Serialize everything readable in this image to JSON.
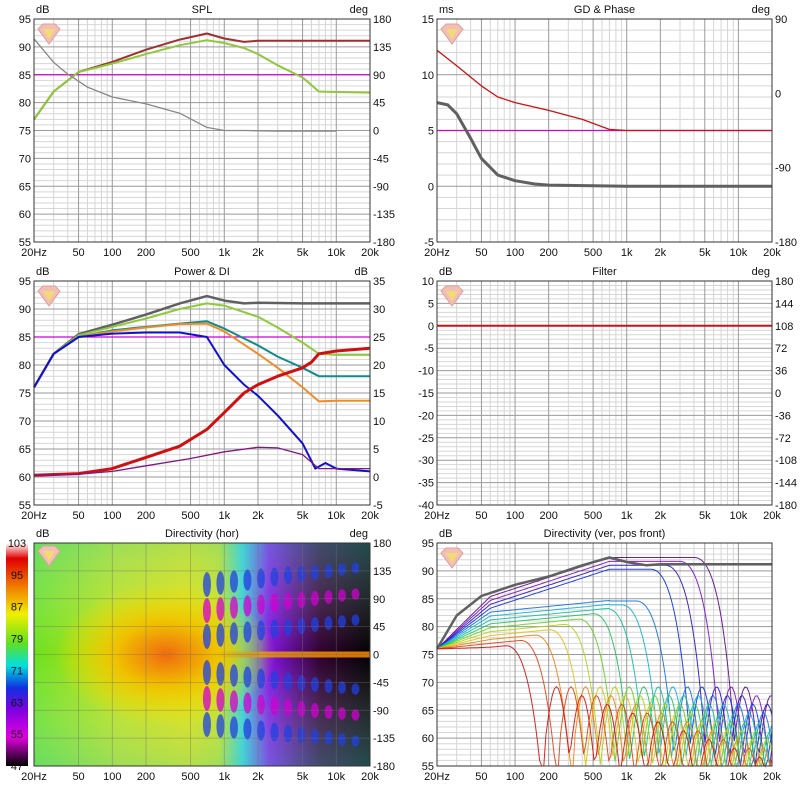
{
  "colors": {
    "gold_line": "#d000d0",
    "spl_red": "#a03030",
    "spl_green": "#90c83c",
    "grey": "#888888",
    "dark_grey": "#606060",
    "red": "#d01010",
    "orange": "#f08c28",
    "teal": "#108c8c",
    "blue": "#1010d0",
    "purple": "#801880"
  },
  "chart_data": [
    {
      "id": "spl",
      "type": "line",
      "title": "SPL",
      "ylabel_left": "dB",
      "ylabel_right": "deg",
      "xlim": [
        20,
        20000
      ],
      "xscale": "log",
      "ylim": [
        55,
        95
      ],
      "y2lim": [
        -180,
        180
      ],
      "x_ticks": [
        "20Hz",
        "50",
        "100",
        "200",
        "500",
        "1k",
        "2k",
        "5k",
        "10k",
        "20k"
      ],
      "y_ticks": [
        "95",
        "90",
        "85",
        "80",
        "75",
        "70",
        "65",
        "60",
        "55"
      ],
      "y2_ticks": [
        "180",
        "135",
        "90",
        "45",
        "0",
        "-45",
        "-90",
        "-135",
        "-180"
      ],
      "hline": 85,
      "series": [
        {
          "axis": "left",
          "color": "#a03030",
          "x": [
            20,
            30,
            50,
            100,
            200,
            400,
            700,
            1000,
            1500,
            2000,
            5000,
            10000,
            20000
          ],
          "y": [
            77,
            82,
            85.5,
            87.3,
            89.5,
            91.3,
            92.4,
            91.5,
            90.9,
            91.1,
            91.1,
            91.1,
            91.1
          ]
        },
        {
          "axis": "left",
          "color": "#90c83c",
          "x": [
            20,
            30,
            50,
            100,
            200,
            400,
            700,
            1000,
            1500,
            2000,
            3000,
            5000,
            7000,
            10000,
            20000
          ],
          "y": [
            77,
            82,
            85.5,
            87,
            88.7,
            90.3,
            91.2,
            90.7,
            89.8,
            88.7,
            86.7,
            84.5,
            82,
            81.9,
            81.8
          ]
        },
        {
          "axis": "right",
          "color": "#888888",
          "x": [
            20,
            30,
            40,
            60,
            100,
            200,
            400,
            700,
            1000,
            1500,
            3000,
            10000
          ],
          "y": [
            148,
            110,
            91,
            70,
            54,
            43,
            28,
            5,
            0,
            0,
            -1,
            -1
          ]
        }
      ]
    },
    {
      "id": "gd_phase",
      "type": "line",
      "title": "GD & Phase",
      "ylabel_left": "ms",
      "ylabel_right": "deg",
      "xlim": [
        20,
        20000
      ],
      "xscale": "log",
      "ylim": [
        -5,
        15
      ],
      "y2lim": [
        -180,
        180
      ],
      "x_ticks": [
        "20Hz",
        "50",
        "100",
        "200",
        "500",
        "1k",
        "2k",
        "5k",
        "10k",
        "20k"
      ],
      "y_ticks": [
        "15",
        "10",
        "5",
        "0",
        "-5"
      ],
      "y2_ticks": [
        "90",
        "0",
        "-90",
        "-180"
      ],
      "hline": 5,
      "series": [
        {
          "axis": "left",
          "color": "#d01010",
          "x": [
            20,
            30,
            50,
            70,
            100,
            200,
            400,
            700,
            1000,
            2000,
            5000,
            20000
          ],
          "y": [
            12.2,
            10.8,
            9,
            8,
            7.5,
            6.8,
            6,
            5.1,
            5,
            5,
            5,
            5
          ]
        },
        {
          "axis": "left",
          "color": "#606060",
          "x": [
            20,
            25,
            30,
            40,
            50,
            70,
            100,
            150,
            200,
            500,
            1000,
            2000,
            20000
          ],
          "y": [
            7.5,
            7.3,
            6.5,
            4.3,
            2.5,
            1,
            0.5,
            0.2,
            0.1,
            0.05,
            0,
            0,
            0
          ]
        }
      ]
    },
    {
      "id": "power_di",
      "type": "line",
      "title": "Power & DI",
      "ylabel_left": "dB",
      "ylabel_right": "dB",
      "xlim": [
        20,
        20000
      ],
      "xscale": "log",
      "ylim": [
        55,
        95
      ],
      "y2lim": [
        -5,
        35
      ],
      "x_ticks": [
        "20Hz",
        "50",
        "100",
        "200",
        "500",
        "1k",
        "2k",
        "5k",
        "10k",
        "20k"
      ],
      "y_ticks": [
        "95",
        "90",
        "85",
        "80",
        "75",
        "70",
        "65",
        "60",
        "55"
      ],
      "y2_ticks": [
        "35",
        "30",
        "25",
        "20",
        "15",
        "10",
        "5",
        "0",
        "-5"
      ],
      "hline": 85,
      "series": [
        {
          "axis": "left",
          "color": "#606060",
          "x": [
            20,
            30,
            50,
            100,
            200,
            400,
            700,
            1000,
            1500,
            2000,
            5000,
            20000
          ],
          "y": [
            76,
            82,
            85.5,
            87.2,
            89,
            91,
            92.3,
            91.5,
            91,
            91.1,
            91,
            91
          ]
        },
        {
          "axis": "left",
          "color": "#90c83c",
          "x": [
            20,
            30,
            50,
            100,
            200,
            400,
            700,
            1000,
            2000,
            3000,
            5000,
            7000,
            10000,
            20000
          ],
          "y": [
            76,
            82,
            85.3,
            86.8,
            88.3,
            90,
            91,
            90.6,
            88.6,
            86.7,
            84,
            82,
            81.8,
            81.8
          ]
        },
        {
          "axis": "left",
          "color": "#108c8c",
          "x": [
            20,
            30,
            50,
            100,
            200,
            400,
            700,
            1000,
            2000,
            3000,
            5000,
            7000,
            10000,
            20000
          ],
          "y": [
            76,
            82,
            85,
            86.2,
            86.8,
            87.4,
            87.8,
            86.5,
            83.5,
            81.5,
            79.5,
            78,
            78,
            78
          ]
        },
        {
          "axis": "left",
          "color": "#f08c28",
          "x": [
            20,
            30,
            50,
            100,
            200,
            400,
            700,
            1000,
            2000,
            3000,
            5000,
            7000,
            10000,
            20000
          ],
          "y": [
            76,
            82,
            85,
            86,
            86.7,
            87.3,
            87.4,
            86,
            82,
            79.5,
            76,
            73.5,
            73.6,
            73.6
          ]
        },
        {
          "axis": "left",
          "color": "#1010d0",
          "x": [
            20,
            30,
            50,
            100,
            200,
            400,
            700,
            1000,
            1500,
            2000,
            3000,
            5000,
            6500,
            8000,
            10000,
            20000
          ],
          "y": [
            76,
            82,
            85,
            85.6,
            85.8,
            85.8,
            85,
            80,
            76.5,
            74.5,
            71,
            66,
            61.5,
            62.5,
            61.5,
            61
          ]
        },
        {
          "axis": "right",
          "color": "#d01010",
          "x": [
            20,
            50,
            100,
            200,
            400,
            700,
            1000,
            1500,
            2000,
            3000,
            5000,
            6000,
            7000,
            10000,
            20000
          ],
          "y": [
            0.3,
            0.6,
            1.5,
            3.5,
            5.5,
            8.5,
            11.5,
            15,
            16.5,
            18,
            19.5,
            20.5,
            22,
            22.5,
            23
          ]
        },
        {
          "axis": "right",
          "color": "#801880",
          "x": [
            20,
            50,
            100,
            200,
            500,
            1000,
            2000,
            3000,
            5000,
            7000,
            20000
          ],
          "y": [
            0.3,
            0.5,
            1,
            2,
            3.3,
            4.5,
            5.3,
            5.2,
            4,
            1.5,
            1.5
          ]
        }
      ]
    },
    {
      "id": "filter",
      "type": "line",
      "title": "Filter",
      "ylabel_left": "dB",
      "ylabel_right": "deg",
      "xlim": [
        20,
        20000
      ],
      "xscale": "log",
      "ylim": [
        -40,
        10
      ],
      "y2lim": [
        -180,
        180
      ],
      "x_ticks": [
        "20Hz",
        "50",
        "100",
        "200",
        "500",
        "1k",
        "2k",
        "5k",
        "10k",
        "20k"
      ],
      "y_ticks": [
        "10",
        "5",
        "0",
        "-5",
        "-10",
        "-15",
        "-20",
        "-25",
        "-30",
        "-35",
        "-40"
      ],
      "y2_ticks": [
        "180",
        "144",
        "108",
        "72",
        "36",
        "0",
        "-36",
        "-72",
        "-108",
        "-144",
        "-180"
      ],
      "series": [
        {
          "axis": "left",
          "color": "#d01010",
          "x": [
            20,
            20000
          ],
          "y": [
            0,
            0
          ]
        }
      ]
    },
    {
      "id": "directivity_hor",
      "type": "heatmap",
      "title": "Directivity (hor)",
      "ylabel_left": "dB",
      "ylabel_right": "deg",
      "xlim": [
        20,
        20000
      ],
      "xscale": "log",
      "y2lim": [
        -180,
        180
      ],
      "x_ticks": [
        "20Hz",
        "50",
        "100",
        "200",
        "500",
        "1k",
        "2k",
        "5k",
        "10k",
        "20k"
      ],
      "y2_ticks": [
        "180",
        "135",
        "90",
        "45",
        "0",
        "-45",
        "-90",
        "-135",
        "-180"
      ],
      "colorbar_ticks": [
        "103",
        "95",
        "87",
        "79",
        "71",
        "63",
        "55",
        "47"
      ]
    },
    {
      "id": "directivity_ver",
      "type": "line",
      "title": "Directivity (ver, pos front)",
      "ylabel_left": "dB",
      "xlim": [
        20,
        20000
      ],
      "xscale": "log",
      "ylim": [
        55,
        95
      ],
      "x_ticks": [
        "20Hz",
        "50",
        "100",
        "200",
        "500",
        "1k",
        "2k",
        "5k",
        "10k",
        "20k"
      ],
      "y_ticks": [
        "95",
        "90",
        "85",
        "80",
        "75",
        "70",
        "65",
        "60",
        "55"
      ]
    }
  ]
}
